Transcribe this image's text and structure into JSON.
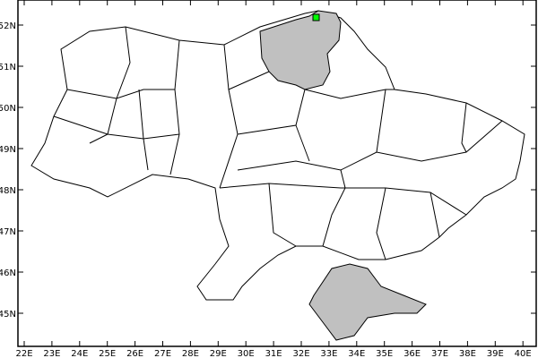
{
  "map": {
    "lon_labels": [
      "22E",
      "23E",
      "24E",
      "25E",
      "26E",
      "27E",
      "28E",
      "29E",
      "30E",
      "31E",
      "32E",
      "33E",
      "34E",
      "35E",
      "36E",
      "37E",
      "38E",
      "39E",
      "40E"
    ],
    "lat_labels": [
      "45N",
      "46N",
      "47N",
      "48N",
      "49N",
      "50N",
      "51N",
      "52N"
    ],
    "highlighted_regions": [
      "Chernihiv oblast",
      "Crimea"
    ],
    "highlight_color": "#c0c0c0",
    "marker": {
      "lon": 32.6,
      "lat": 52.2,
      "color": "#00ff00"
    }
  }
}
